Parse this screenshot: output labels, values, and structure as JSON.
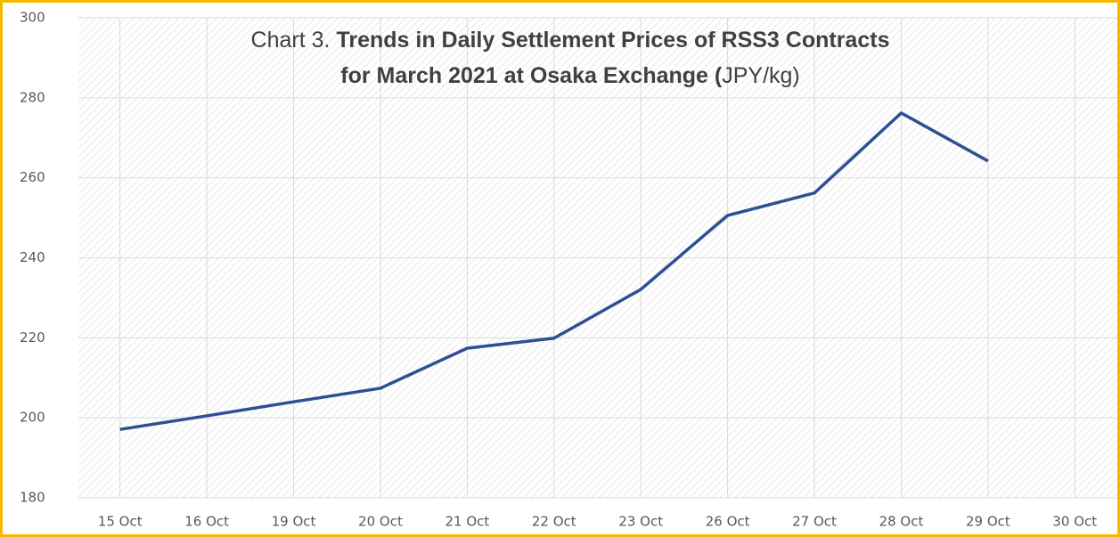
{
  "chart_data": {
    "type": "line",
    "title_lines": [
      [
        {
          "text": "Chart 3.",
          "bold": false
        },
        {
          "text": "Trends in Daily Settlement Prices of RSS3 Contracts",
          "bold": true
        }
      ],
      [
        {
          "text": "for March 2021 at Osaka Exchange (",
          "bold": true
        },
        {
          "text": "JPY/kg)",
          "bold": false
        }
      ]
    ],
    "categories": [
      "15 Oct",
      "16 Oct",
      "19 Oct",
      "20 Oct",
      "21 Oct",
      "22 Oct",
      "23 Oct",
      "26 Oct",
      "27 Oct",
      "28 Oct",
      "29 Oct",
      "30 Oct"
    ],
    "series": [
      {
        "name": "RSS3",
        "color": "#2f4f94",
        "values": [
          197.1,
          200.5,
          204,
          207.4,
          217.4,
          219.9,
          232.1,
          250.6,
          256.2,
          276.2,
          264.2,
          null
        ]
      }
    ],
    "ylim": [
      180,
      300
    ],
    "yticks": [
      180,
      200,
      220,
      240,
      260,
      280,
      300
    ],
    "grid": true,
    "border_color": "#f5b800"
  }
}
